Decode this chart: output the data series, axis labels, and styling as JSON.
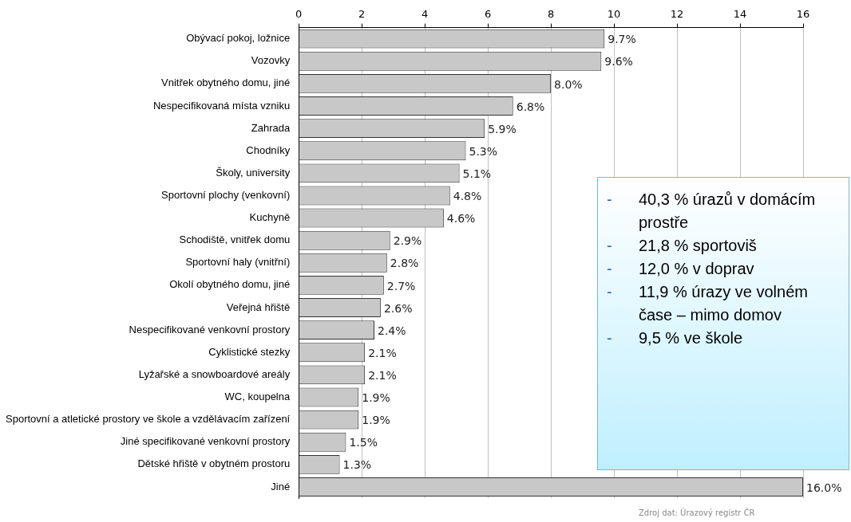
{
  "chart_data": {
    "type": "bar",
    "orientation": "horizontal",
    "categories": [
      "Obývací pokoj, ložnice",
      "Vozovky",
      "Vnitřek obytného domu, jiné",
      "Nespecifikovaná místa vzniku",
      "Zahrada",
      "Chodníky",
      "Školy, university",
      "Sportovní plochy (venkovní)",
      "Kuchyně",
      "Schodiště, vnitřek domu",
      "Sportovní haly (vnitřní)",
      "Okolí obytného domu, jiné",
      "Veřejná hřiště",
      "Nespecifikované venkovní prostory",
      "Cyklistické stezky",
      "Lyžařské a snowboardové areály",
      "WC, koupelna",
      "Sportovní a atletické prostory ve škole a vzdělávacím zařízení",
      "Jiné specifikované venkovní prostory",
      "Dětské hřiště v obytném prostoru",
      "Jiné"
    ],
    "values": [
      9.7,
      9.6,
      8.0,
      6.8,
      5.9,
      5.3,
      5.1,
      4.8,
      4.6,
      2.9,
      2.8,
      2.7,
      2.6,
      2.4,
      2.1,
      2.1,
      1.9,
      1.9,
      1.5,
      1.3,
      16.0
    ],
    "value_labels": [
      "9.7%",
      "9.6%",
      "8.0%",
      "6.8%",
      "5.9%",
      "5.3%",
      "5.1%",
      "4.8%",
      "4.6%",
      "2.9%",
      "2.8%",
      "2.7%",
      "2.6%",
      "2.4%",
      "2.1%",
      "2.1%",
      "1.9%",
      "1.9%",
      "1.5%",
      "1.3%",
      "16.0%"
    ],
    "color": "#c8c8c8",
    "xlim": [
      0,
      16
    ],
    "xticks": [
      0,
      2,
      4,
      6,
      8,
      10,
      12,
      14,
      16
    ],
    "grid": "x",
    "annotations": [
      "- 40,3 % úrazů v domácím prostře",
      "- 21,8 % sportoviš",
      "- 12,0 % v doprav",
      "- 11,9 % úrazy ve volném čase – mimo domov",
      "- 9,5 % ve škole",
      "Zdroj dat: Úrazový registr ČR"
    ]
  }
}
